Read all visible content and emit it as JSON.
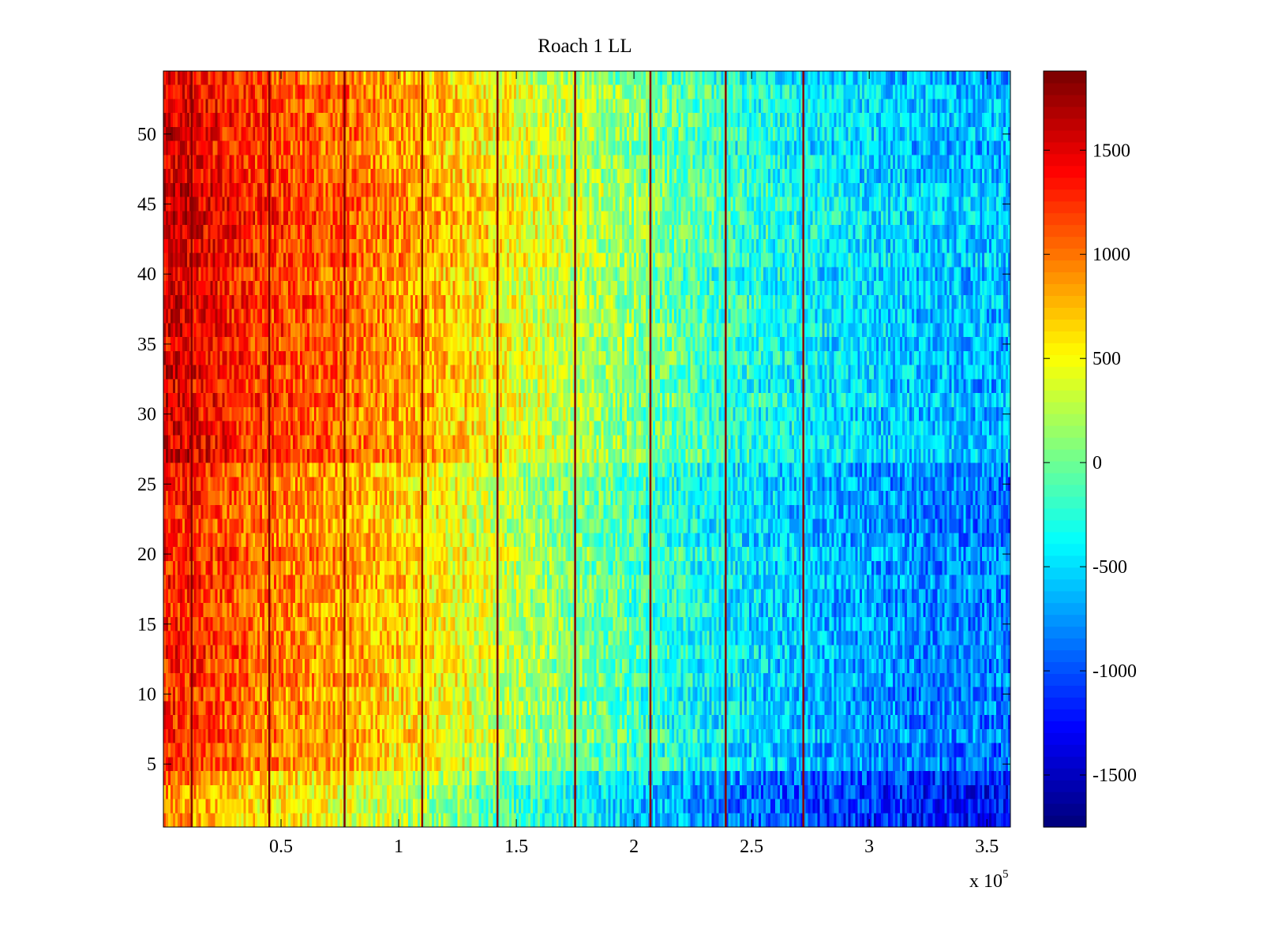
{
  "chart_data": {
    "type": "heatmap",
    "title": "Roach 1 LL",
    "xlabel": "",
    "ylabel": "",
    "x_range": [
      0,
      360000
    ],
    "y_range": [
      0.5,
      54.5
    ],
    "n_rows": 54,
    "x_ticks": [
      {
        "value": 50000,
        "label": "0.5"
      },
      {
        "value": 100000,
        "label": "1"
      },
      {
        "value": 150000,
        "label": "1.5"
      },
      {
        "value": 200000,
        "label": "2"
      },
      {
        "value": 250000,
        "label": "2.5"
      },
      {
        "value": 300000,
        "label": "3"
      },
      {
        "value": 350000,
        "label": "3.5"
      }
    ],
    "x_multiplier": {
      "base": "x 10",
      "exponent": "5"
    },
    "y_ticks": [
      {
        "value": 5,
        "label": "5"
      },
      {
        "value": 10,
        "label": "10"
      },
      {
        "value": 15,
        "label": "15"
      },
      {
        "value": 20,
        "label": "20"
      },
      {
        "value": 25,
        "label": "25"
      },
      {
        "value": 30,
        "label": "30"
      },
      {
        "value": 35,
        "label": "35"
      },
      {
        "value": 40,
        "label": "40"
      },
      {
        "value": 45,
        "label": "45"
      },
      {
        "value": 50,
        "label": "50"
      }
    ],
    "colorbar": {
      "range": [
        -1750,
        1880
      ],
      "ticks": [
        {
          "value": 1500,
          "label": "1500"
        },
        {
          "value": 1000,
          "label": "1000"
        },
        {
          "value": 500,
          "label": "500"
        },
        {
          "value": 0,
          "label": "0"
        },
        {
          "value": -500,
          "label": "-500"
        },
        {
          "value": -1000,
          "label": "-1000"
        },
        {
          "value": -1500,
          "label": "-1500"
        }
      ],
      "colormap": "jet",
      "levels": 64
    },
    "trend": {
      "x": [
        0,
        12000,
        40000,
        80000,
        120000,
        160000,
        200000,
        240000,
        280000,
        320000,
        360000
      ],
      "value": [
        1300,
        1250,
        1000,
        800,
        500,
        150,
        -150,
        -450,
        -650,
        -800,
        -850
      ]
    },
    "row_offsets_by_band": [
      {
        "rows": [
          1,
          4
        ],
        "offset": -350
      },
      {
        "rows": [
          5,
          26
        ],
        "offset": 0
      },
      {
        "rows": [
          27,
          53
        ],
        "offset": 230
      },
      {
        "rows": [
          54,
          54
        ],
        "offset": 100
      }
    ],
    "spike_lines_x": [
      12000,
      45000,
      77000,
      110000,
      142000,
      175000,
      207000,
      239000,
      272000
    ],
    "spike_value": 1850,
    "grid": false,
    "legend": "none"
  }
}
